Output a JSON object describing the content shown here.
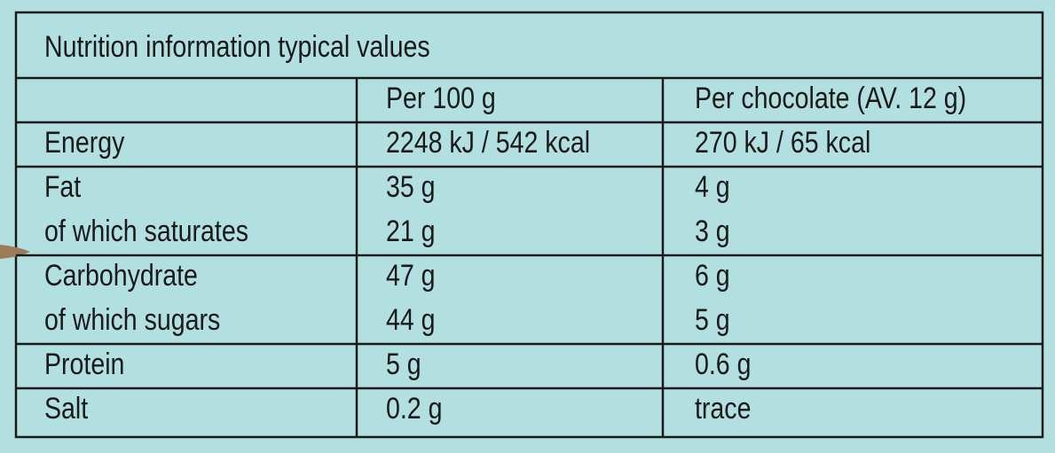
{
  "title": "Nutrition information typical values",
  "table": {
    "header": [
      "Per 100 g",
      "Per chocolate (AV. 12 g)"
    ],
    "rows": [
      [
        [
          "Energy",
          "2248 kJ / 542 kcal",
          "270 kJ / 65 kcal"
        ]
      ],
      [
        [
          "Fat",
          "35 g",
          "4 g"
        ],
        [
          "of which saturates",
          "21 g",
          "3 g"
        ]
      ],
      [
        [
          "Carbohydrate",
          "47 g",
          "6 g"
        ],
        [
          "of which sugars",
          "44 g",
          "5 g"
        ]
      ],
      [
        [
          "Protein",
          "5 g",
          "0.6 g"
        ]
      ],
      [
        [
          "Salt",
          "0.2 g",
          "trace"
        ]
      ]
    ]
  }
}
